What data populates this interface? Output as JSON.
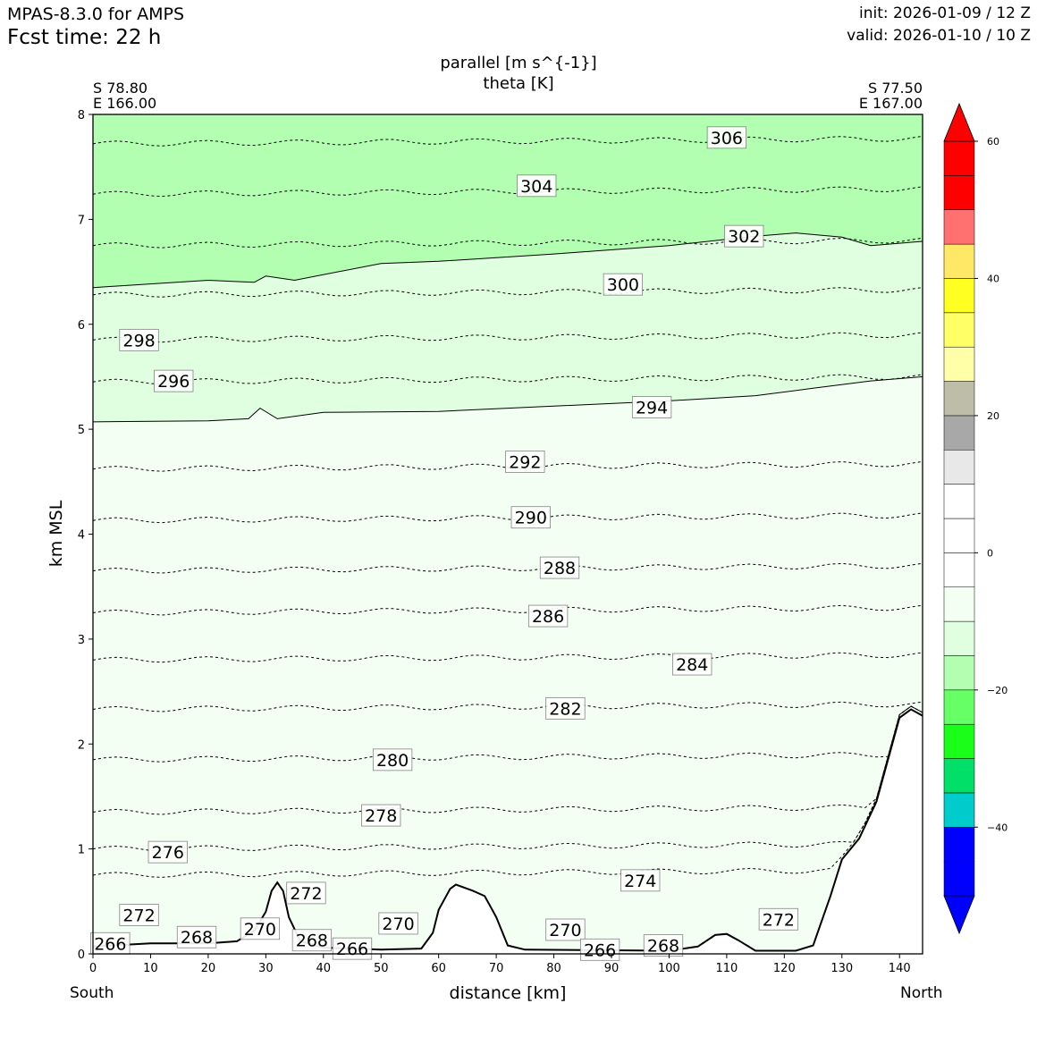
{
  "header": {
    "model": "MPAS-8.3.0 for AMPS",
    "fcst_time": "Fcst time:   22 h",
    "init": "init: 2026-01-09 / 12 Z",
    "valid": "valid: 2026-01-10 / 10 Z"
  },
  "chart_data": {
    "type": "contour-cross-section",
    "title_lines": [
      "parallel [m s^{-1}]",
      "theta [K]"
    ],
    "xlabel": "distance [km]",
    "ylabel": "km MSL",
    "xlim": [
      0,
      144
    ],
    "ylim": [
      0,
      8
    ],
    "x_ticks": [
      0,
      10,
      20,
      30,
      40,
      50,
      60,
      70,
      80,
      90,
      100,
      110,
      120,
      130,
      140
    ],
    "y_ticks": [
      0,
      1,
      2,
      3,
      4,
      5,
      6,
      7,
      8
    ],
    "endpoints": {
      "start": {
        "lat": "S 78.80",
        "lon": "E 166.00",
        "label": "South"
      },
      "end": {
        "lat": "S 77.50",
        "lon": "E 167.00",
        "label": "North"
      }
    },
    "terrain_km": [
      [
        0,
        0.07
      ],
      [
        10,
        0.1
      ],
      [
        20,
        0.1
      ],
      [
        25,
        0.12
      ],
      [
        28,
        0.22
      ],
      [
        30,
        0.4
      ],
      [
        31,
        0.6
      ],
      [
        32,
        0.68
      ],
      [
        33,
        0.6
      ],
      [
        34,
        0.35
      ],
      [
        36,
        0.12
      ],
      [
        40,
        0.06
      ],
      [
        50,
        0.04
      ],
      [
        57,
        0.05
      ],
      [
        59,
        0.2
      ],
      [
        60,
        0.42
      ],
      [
        62,
        0.62
      ],
      [
        63,
        0.66
      ],
      [
        66,
        0.6
      ],
      [
        68,
        0.55
      ],
      [
        70,
        0.35
      ],
      [
        72,
        0.08
      ],
      [
        75,
        0.04
      ],
      [
        100,
        0.03
      ],
      [
        105,
        0.07
      ],
      [
        108,
        0.18
      ],
      [
        110,
        0.19
      ],
      [
        112,
        0.13
      ],
      [
        115,
        0.03
      ],
      [
        122,
        0.03
      ],
      [
        125,
        0.08
      ],
      [
        128,
        0.55
      ],
      [
        130,
        0.9
      ],
      [
        133,
        1.1
      ],
      [
        136,
        1.45
      ],
      [
        138,
        1.85
      ],
      [
        140,
        2.25
      ],
      [
        142,
        2.33
      ],
      [
        144,
        2.27
      ]
    ],
    "wind_filled_regions": [
      {
        "level": "-20 to -15",
        "color": "#b2ffb2",
        "lower_boundary_km": [
          [
            0,
            6.35
          ],
          [
            20,
            6.42
          ],
          [
            28,
            6.4
          ],
          [
            30,
            6.46
          ],
          [
            35,
            6.42
          ],
          [
            50,
            6.58
          ],
          [
            60,
            6.6
          ],
          [
            80,
            6.67
          ],
          [
            100,
            6.75
          ],
          [
            115,
            6.84
          ],
          [
            122,
            6.87
          ],
          [
            130,
            6.83
          ],
          [
            135,
            6.75
          ],
          [
            144,
            6.79
          ]
        ]
      },
      {
        "level": "-15 to -10",
        "color": "#e0ffe0",
        "lower_boundary_km": [
          [
            0,
            5.07
          ],
          [
            20,
            5.08
          ],
          [
            27,
            5.1
          ],
          [
            29,
            5.2
          ],
          [
            32,
            5.1
          ],
          [
            40,
            5.16
          ],
          [
            60,
            5.17
          ],
          [
            80,
            5.22
          ],
          [
            100,
            5.27
          ],
          [
            115,
            5.32
          ],
          [
            125,
            5.39
          ],
          [
            135,
            5.46
          ],
          [
            144,
            5.5
          ]
        ]
      },
      {
        "level": "-10 to -5",
        "color": "#f4fff4"
      }
    ],
    "theta_contour_labels_K": [
      266,
      268,
      270,
      272,
      274,
      276,
      278,
      280,
      282,
      284,
      286,
      288,
      290,
      292,
      294,
      296,
      298,
      300,
      302,
      304,
      306
    ],
    "theta_contour_label_positions": [
      {
        "value": 306,
        "x": 110,
        "y": 7.78
      },
      {
        "value": 304,
        "x": 77,
        "y": 7.32
      },
      {
        "value": 302,
        "x": 113,
        "y": 6.84
      },
      {
        "value": 300,
        "x": 92,
        "y": 6.38
      },
      {
        "value": 298,
        "x": 8,
        "y": 5.85
      },
      {
        "value": 296,
        "x": 14,
        "y": 5.46
      },
      {
        "value": 294,
        "x": 97,
        "y": 5.21
      },
      {
        "value": 292,
        "x": 75,
        "y": 4.69
      },
      {
        "value": 290,
        "x": 76,
        "y": 4.16
      },
      {
        "value": 288,
        "x": 81,
        "y": 3.68
      },
      {
        "value": 286,
        "x": 79,
        "y": 3.22
      },
      {
        "value": 284,
        "x": 104,
        "y": 2.76
      },
      {
        "value": 282,
        "x": 82,
        "y": 2.34
      },
      {
        "value": 280,
        "x": 52,
        "y": 1.85
      },
      {
        "value": 278,
        "x": 50,
        "y": 1.32
      },
      {
        "value": 276,
        "x": 13,
        "y": 0.97
      },
      {
        "value": 274,
        "x": 95,
        "y": 0.7
      },
      {
        "value": 272,
        "x": 8,
        "y": 0.37
      },
      {
        "value": 272,
        "x": 37,
        "y": 0.58
      },
      {
        "value": 272,
        "x": 119,
        "y": 0.33
      },
      {
        "value": 270,
        "x": 29,
        "y": 0.24
      },
      {
        "value": 270,
        "x": 53,
        "y": 0.29
      },
      {
        "value": 270,
        "x": 82,
        "y": 0.23
      },
      {
        "value": 268,
        "x": 18,
        "y": 0.16
      },
      {
        "value": 268,
        "x": 38,
        "y": 0.13
      },
      {
        "value": 268,
        "x": 99,
        "y": 0.08
      },
      {
        "value": 266,
        "x": 3,
        "y": 0.1
      },
      {
        "value": 266,
        "x": 45,
        "y": 0.05
      },
      {
        "value": 266,
        "x": 88,
        "y": 0.04
      }
    ],
    "theta_contour_levels_km": [
      0.75,
      1.0,
      1.35,
      1.85,
      2.33,
      2.8,
      3.25,
      3.65,
      4.13,
      4.62,
      5.45,
      5.85,
      6.28,
      6.75,
      7.24,
      7.72
    ],
    "colorbar": {
      "min": -50,
      "max": 60,
      "step": 5,
      "extend": "both",
      "tick_values": [
        -40,
        -20,
        0,
        20,
        40,
        60
      ],
      "tick_labels": [
        "−40",
        "−20",
        "0",
        "20",
        "40",
        "60"
      ],
      "below_color": "#0000ff",
      "above_color": "#ff0000",
      "bins": [
        {
          "from": -50,
          "to": -45,
          "color": "#0000ff"
        },
        {
          "from": -45,
          "to": -40,
          "color": "#0000ff"
        },
        {
          "from": -40,
          "to": -35,
          "color": "#00cccc"
        },
        {
          "from": -35,
          "to": -30,
          "color": "#00e068"
        },
        {
          "from": -30,
          "to": -25,
          "color": "#1aff1a"
        },
        {
          "from": -25,
          "to": -20,
          "color": "#66ff66"
        },
        {
          "from": -20,
          "to": -15,
          "color": "#b2ffb2"
        },
        {
          "from": -15,
          "to": -10,
          "color": "#e0ffe0"
        },
        {
          "from": -10,
          "to": -5,
          "color": "#f4fff4"
        },
        {
          "from": -5,
          "to": 0,
          "color": "#ffffff"
        },
        {
          "from": 0,
          "to": 5,
          "color": "#ffffff"
        },
        {
          "from": 5,
          "to": 10,
          "color": "#ffffff"
        },
        {
          "from": 10,
          "to": 15,
          "color": "#e8e8e8"
        },
        {
          "from": 15,
          "to": 20,
          "color": "#a8a8a8"
        },
        {
          "from": 20,
          "to": 25,
          "color": "#bebea8"
        },
        {
          "from": 25,
          "to": 30,
          "color": "#ffffa8"
        },
        {
          "from": 30,
          "to": 35,
          "color": "#ffff66"
        },
        {
          "from": 35,
          "to": 40,
          "color": "#ffff22"
        },
        {
          "from": 40,
          "to": 45,
          "color": "#ffe866"
        },
        {
          "from": 45,
          "to": 50,
          "color": "#ff7070"
        },
        {
          "from": 50,
          "to": 55,
          "color": "#ff0000"
        },
        {
          "from": 55,
          "to": 60,
          "color": "#ff0000"
        }
      ]
    }
  }
}
